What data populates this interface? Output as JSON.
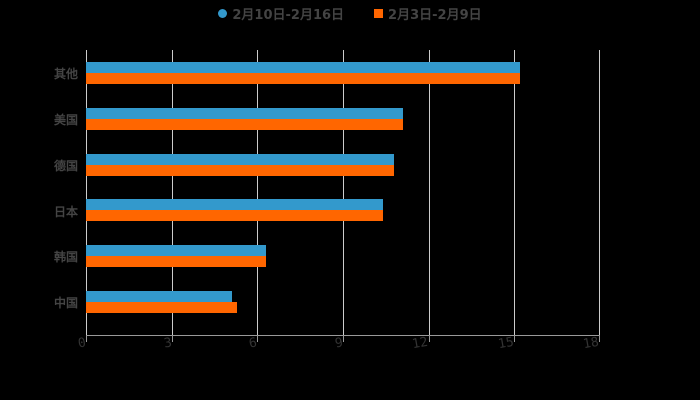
{
  "legend": {
    "items": [
      {
        "label": "2月10日-2月16日",
        "color": "#3399cc",
        "shape": "circle"
      },
      {
        "label": "2月3日-2月9日",
        "color": "#ff6600",
        "shape": "square"
      }
    ]
  },
  "axis": {
    "ticks": [
      "0",
      "3",
      "6",
      "9",
      "12",
      "15",
      "18"
    ]
  },
  "categories": [
    "其他",
    "美国",
    "德国",
    "日本",
    "韩国",
    "中国"
  ],
  "chart_data": {
    "type": "bar",
    "orientation": "horizontal",
    "title": "",
    "xlabel": "",
    "ylabel": "",
    "categories": [
      "其他",
      "美国",
      "德国",
      "日本",
      "韩国",
      "中国"
    ],
    "series": [
      {
        "name": "2月10日-2月16日",
        "color": "#3399cc",
        "values": [
          15.2,
          11.1,
          10.8,
          10.4,
          6.3,
          5.1
        ]
      },
      {
        "name": "2月3日-2月9日",
        "color": "#ff6600",
        "values": [
          15.2,
          11.1,
          10.8,
          10.4,
          6.3,
          5.3
        ]
      }
    ],
    "xlim": [
      0,
      18
    ],
    "xticks": [
      0,
      3,
      6,
      9,
      12,
      15,
      18
    ],
    "grid": true,
    "legend_position": "top"
  }
}
